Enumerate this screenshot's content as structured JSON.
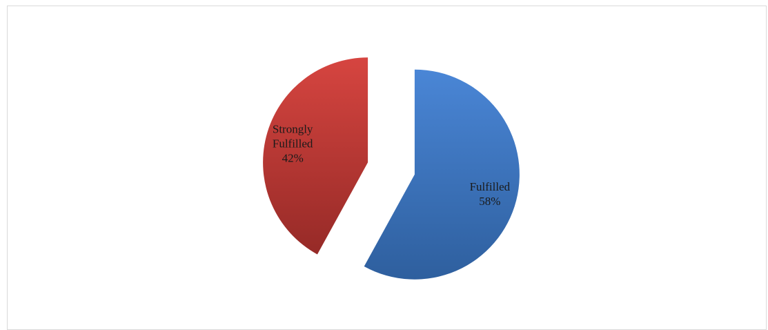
{
  "chart_data": {
    "type": "pie",
    "categories": [
      "Fulfilled",
      "Strongly Fulfilled"
    ],
    "values": [
      58,
      42
    ],
    "unit": "%",
    "exploded": true,
    "start_angle_deg": 0,
    "direction": "clockwise",
    "slices": [
      {
        "name_lines": [
          "Fulfilled"
        ],
        "percent_label": "58%",
        "value": 58,
        "color_light": "#4a86d6",
        "color_dark": "#2e5f9e"
      },
      {
        "name_lines": [
          "Strongly",
          "Fulfilled"
        ],
        "percent_label": "42%",
        "value": 42,
        "color_light": "#d64540",
        "color_dark": "#962a27"
      }
    ],
    "legend": "none",
    "grid": false
  }
}
